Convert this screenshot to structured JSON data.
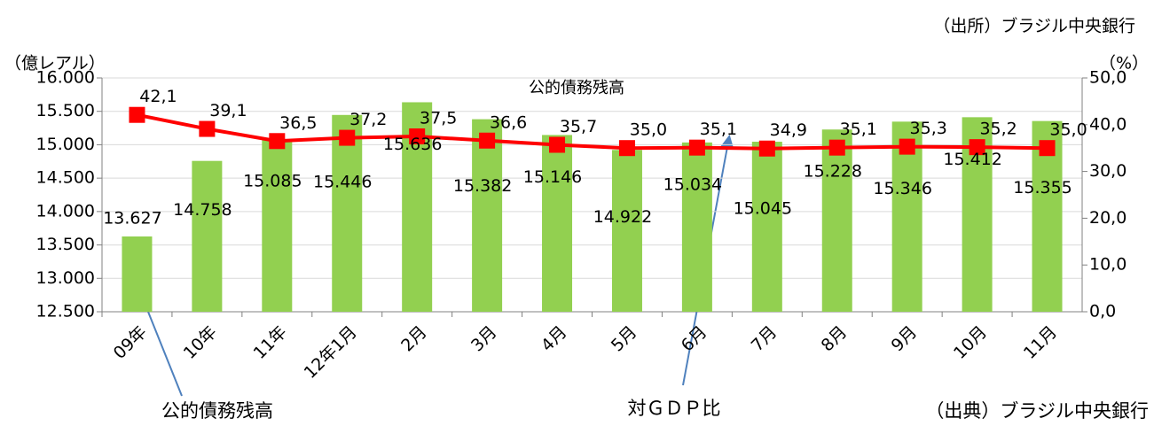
{
  "chart_data": {
    "type": "bar_line",
    "title": "公的債務残高",
    "source": "（出所）ブラジル中央銀行",
    "source_bottom": "（出典）ブラジル中央銀行",
    "ylabel": "（億レアル）",
    "y2label": "（%）",
    "categories": [
      "09年",
      "10年",
      "11年",
      "12年1月",
      "2月",
      "3月",
      "4月",
      "5月",
      "6月",
      "7月",
      "8月",
      "9月",
      "10月",
      "11月"
    ],
    "series": [
      {
        "name": "公的債務残高",
        "type": "bar",
        "color": "#92d050",
        "values": [
          13627,
          14758,
          15085,
          15446,
          15636,
          15382,
          15146,
          14922,
          15034,
          15045,
          15228,
          15346,
          15412,
          15355
        ],
        "value_labels": [
          "13.627",
          "14.758",
          "15.085",
          "15.446",
          "15.636",
          "15.382",
          "15.146",
          "14.922",
          "15.034",
          "15.045",
          "15.228",
          "15.346",
          "15.412",
          "15.355"
        ]
      },
      {
        "name": "対ＧＤＰ比",
        "type": "line",
        "axis": "y2",
        "color": "#ff0000",
        "values": [
          42.1,
          39.1,
          36.5,
          37.2,
          37.5,
          36.6,
          35.7,
          35.0,
          35.1,
          34.9,
          35.1,
          35.3,
          35.2,
          35.0
        ],
        "value_labels": [
          "42,1",
          "39,1",
          "36,5",
          "37,2",
          "37,5",
          "36,6",
          "35,7",
          "35,0",
          "35,1",
          "34,9",
          "35,1",
          "35,3",
          "35,2",
          "35,0"
        ]
      }
    ],
    "ylim": [
      12500,
      16000
    ],
    "yticks": [
      {
        "value": 12500,
        "label": "12.500"
      },
      {
        "value": 13000,
        "label": "13.000"
      },
      {
        "value": 13500,
        "label": "13.500"
      },
      {
        "value": 14000,
        "label": "14.000"
      },
      {
        "value": 14500,
        "label": "14.500"
      },
      {
        "value": 15000,
        "label": "15.000"
      },
      {
        "value": 15500,
        "label": "15.500"
      },
      {
        "value": 16000,
        "label": "16.000"
      }
    ],
    "y2lim": [
      0,
      50
    ],
    "y2ticks": [
      {
        "value": 0,
        "label": "0,0"
      },
      {
        "value": 10,
        "label": "10,0"
      },
      {
        "value": 20,
        "label": "20,0"
      },
      {
        "value": 30,
        "label": "30,0"
      },
      {
        "value": 40,
        "label": "40,0"
      },
      {
        "value": 50,
        "label": "50,0"
      }
    ],
    "grid": true
  }
}
